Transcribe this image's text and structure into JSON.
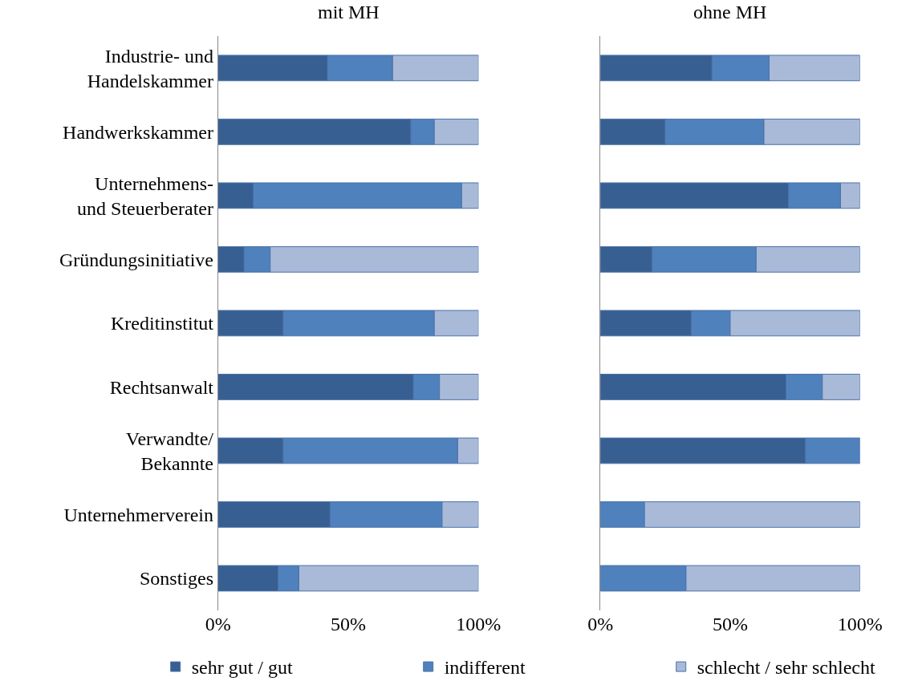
{
  "chart_data": [
    {
      "type": "bar",
      "orientation": "horizontal",
      "stacked": true,
      "title": "mit MH",
      "categories": [
        "Industrie- und\nHandelskammer",
        "Handwerkskammer",
        "Unternehmens-\nund Steuerberater",
        "Gründungsinitiative",
        "Kreditinstitut",
        "Rechtsanwalt",
        "Verwandte/\nBekannte",
        "Unternehmerverein",
        "Sonstiges"
      ],
      "series": [
        {
          "name": "sehr gut / gut",
          "color": "#375f92",
          "values": [
            42,
            74,
            13.5,
            10,
            25,
            75,
            25,
            43,
            23
          ]
        },
        {
          "name": "indifferent",
          "color": "#4f81bd",
          "values": [
            25,
            9,
            80,
            10,
            58,
            10,
            67,
            43,
            8
          ]
        },
        {
          "name": "schlecht / sehr schlecht",
          "color": "#a9b9d8",
          "values": [
            33,
            17,
            6.5,
            80,
            17,
            15,
            8,
            14,
            69
          ]
        }
      ],
      "xlim": [
        0,
        100
      ],
      "xticks": [
        {
          "value": 0,
          "label": "0%"
        },
        {
          "value": 50,
          "label": "50%"
        },
        {
          "value": 100,
          "label": "100%"
        }
      ],
      "legend": "bottom"
    },
    {
      "type": "bar",
      "orientation": "horizontal",
      "stacked": true,
      "title": "ohne MH",
      "categories": [
        null,
        null,
        null,
        null,
        null,
        null,
        null,
        null,
        null
      ],
      "series": [
        {
          "color": "#375f92",
          "values": [
            43,
            25,
            72.5,
            20,
            35,
            71.5,
            79,
            null,
            null
          ]
        },
        {
          "color": "#4f81bd",
          "values": [
            22,
            38,
            20,
            40,
            15,
            14,
            21,
            17,
            33
          ]
        },
        {
          "color": "#a9b9d8",
          "values": [
            35,
            37,
            7.5,
            40,
            50,
            14.5,
            null,
            83,
            67
          ]
        }
      ],
      "xlim": [
        0,
        100
      ],
      "xticks": [
        {
          "value": 0,
          "label": "0%"
        },
        {
          "value": 50,
          "label": "50%"
        },
        {
          "value": 100,
          "label": "100%"
        }
      ],
      "tick_labels": "x"
    }
  ]
}
